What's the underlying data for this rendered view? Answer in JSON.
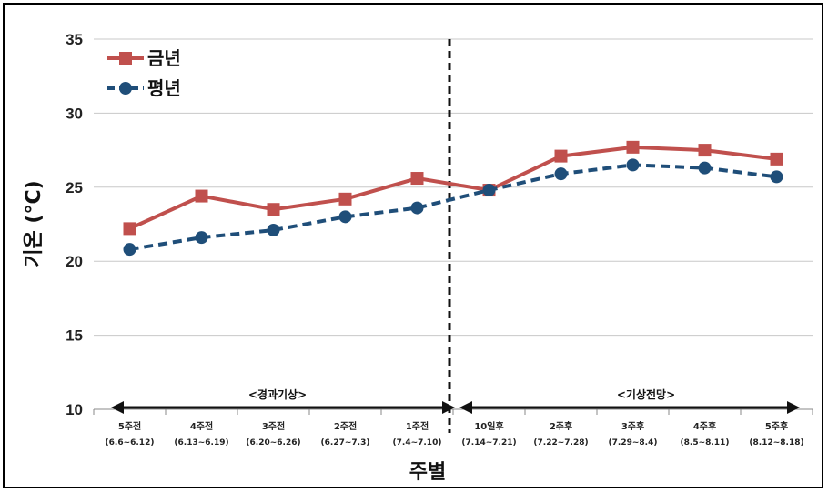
{
  "chart_data": {
    "type": "line",
    "xlabel": "주별",
    "ylabel": "기온 (°C)",
    "ylim": [
      10,
      35
    ],
    "yticks": [
      "10",
      "15",
      "20",
      "25",
      "30",
      "35"
    ],
    "grid": true,
    "legend_position": "top-left",
    "categories": [
      "5주전",
      "4주전",
      "3주전",
      "2주전",
      "1주전",
      "10일후",
      "2주후",
      "3주후",
      "4주후",
      "5주후"
    ],
    "category_ranges": [
      "(6.6~6.12)",
      "(6.13~6.19)",
      "(6.20~6.26)",
      "(6.27~7.3)",
      "(7.4~7.10)",
      "(7.14~7.21)",
      "(7.22~7.28)",
      "(7.29~8.4)",
      "(8.5~8.11)",
      "(8.12~8.18)"
    ],
    "series": [
      {
        "name": "금년",
        "color": "#c0504d",
        "marker": "square",
        "dash": "solid",
        "values": [
          22.2,
          24.4,
          23.5,
          24.2,
          25.6,
          24.8,
          27.1,
          27.7,
          27.5,
          26.9
        ]
      },
      {
        "name": "평년",
        "color": "#1f4e79",
        "marker": "circle",
        "dash": "dashed",
        "values": [
          20.8,
          21.6,
          22.1,
          23.0,
          23.6,
          24.8,
          25.9,
          26.5,
          26.3,
          25.7
        ]
      }
    ],
    "annotations": {
      "past_label": "<경과기상>",
      "forecast_label": "<기상전망>"
    }
  }
}
